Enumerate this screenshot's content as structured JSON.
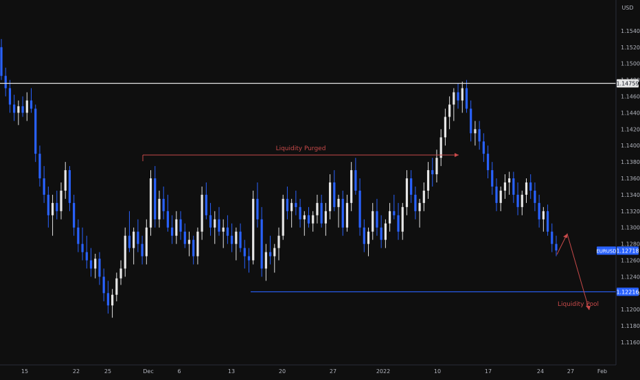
{
  "chart_data": {
    "type": "candlestick",
    "symbol": "EURUSD",
    "currency": "USD",
    "y_axis": {
      "min": 1.115,
      "max": 1.156,
      "ticks": [
        "1.15400",
        "1.15200",
        "1.15000",
        "1.14800",
        "1.14600",
        "1.14400",
        "1.14200",
        "1.14000",
        "1.13800",
        "1.13600",
        "1.13400",
        "1.13200",
        "1.13000",
        "1.12800",
        "1.12600",
        "1.12400",
        "1.12200",
        "1.12000",
        "1.11800",
        "1.11600"
      ]
    },
    "x_axis": {
      "ticks": [
        "15",
        "22",
        "25",
        "Dec",
        "6",
        "13",
        "20",
        "27",
        "2022",
        "10",
        "17",
        "24",
        "27",
        "Feb"
      ]
    },
    "grid": false,
    "last_price": {
      "label": "EURUSD",
      "value": "1.12718"
    },
    "levels": [
      {
        "value": "1.14759",
        "color": "#e6e6e6"
      },
      {
        "value": "1.12216",
        "color": "#2962ff"
      }
    ],
    "annotations": [
      {
        "text": "Liquidity Purged",
        "color": "#c94a4a"
      },
      {
        "text": "Liquidity Pool",
        "color": "#c94a4a"
      }
    ],
    "series": [
      {
        "pattern": [
          [
            1.152,
            1.153,
            1.148,
            1.1485
          ],
          [
            1.1485,
            1.1495,
            1.146,
            1.147
          ],
          [
            1.147,
            1.148,
            1.144,
            1.145
          ],
          [
            1.145,
            1.1462,
            1.143,
            1.144
          ],
          [
            1.144,
            1.1455,
            1.1425,
            1.1448
          ],
          [
            1.1448,
            1.146,
            1.1435,
            1.144
          ],
          [
            1.144,
            1.1465,
            1.143,
            1.1455
          ],
          [
            1.1455,
            1.147,
            1.144,
            1.1445
          ],
          [
            1.1445,
            1.145,
            1.138,
            1.139
          ],
          [
            1.139,
            1.14,
            1.135,
            1.136
          ],
          [
            1.136,
            1.1375,
            1.133,
            1.134
          ],
          [
            1.134,
            1.135,
            1.13,
            1.1315
          ],
          [
            1.1315,
            1.134,
            1.129,
            1.133
          ],
          [
            1.133,
            1.1345,
            1.131,
            1.132
          ],
          [
            1.132,
            1.1355,
            1.131,
            1.1345
          ],
          [
            1.1345,
            1.138,
            1.1335,
            1.137
          ],
          [
            1.137,
            1.1375,
            1.132,
            1.133
          ],
          [
            1.133,
            1.134,
            1.129,
            1.13
          ],
          [
            1.13,
            1.131,
            1.127,
            1.128
          ],
          [
            1.128,
            1.13,
            1.126,
            1.127
          ],
          [
            1.127,
            1.129,
            1.125,
            1.126
          ],
          [
            1.126,
            1.1275,
            1.124,
            1.125
          ],
          [
            1.125,
            1.1268,
            1.1238,
            1.1262
          ],
          [
            1.1262,
            1.127,
            1.123,
            1.124
          ],
          [
            1.124,
            1.125,
            1.121,
            1.122
          ],
          [
            1.122,
            1.1235,
            1.1195,
            1.1205
          ],
          [
            1.1205,
            1.1225,
            1.119,
            1.1218
          ],
          [
            1.1218,
            1.1245,
            1.121,
            1.1238
          ],
          [
            1.1238,
            1.126,
            1.123,
            1.125
          ],
          [
            1.125,
            1.13,
            1.124,
            1.129
          ],
          [
            1.129,
            1.132,
            1.127,
            1.1275
          ],
          [
            1.1275,
            1.13,
            1.1255,
            1.1295
          ],
          [
            1.1295,
            1.131,
            1.127,
            1.128
          ],
          [
            1.128,
            1.129,
            1.1255,
            1.1265
          ],
          [
            1.1265,
            1.131,
            1.1255,
            1.13
          ],
          [
            1.13,
            1.137,
            1.129,
            1.136
          ],
          [
            1.136,
            1.1375,
            1.13,
            1.131
          ],
          [
            1.131,
            1.1345,
            1.13,
            1.1335
          ],
          [
            1.1335,
            1.135,
            1.131,
            1.132
          ],
          [
            1.132,
            1.134,
            1.1295,
            1.13
          ],
          [
            1.13,
            1.1315,
            1.128,
            1.129
          ],
          [
            1.129,
            1.132,
            1.128,
            1.131
          ],
          [
            1.131,
            1.132,
            1.1285,
            1.1295
          ],
          [
            1.1295,
            1.1305,
            1.1275,
            1.128
          ],
          [
            1.128,
            1.1295,
            1.1265,
            1.1285
          ],
          [
            1.1285,
            1.129,
            1.1255,
            1.1265
          ],
          [
            1.1265,
            1.13,
            1.1255,
            1.1295
          ],
          [
            1.1295,
            1.135,
            1.1285,
            1.134
          ],
          [
            1.134,
            1.1355,
            1.131,
            1.1315
          ],
          [
            1.1315,
            1.133,
            1.129,
            1.13
          ],
          [
            1.13,
            1.132,
            1.128,
            1.131
          ],
          [
            1.131,
            1.1325,
            1.129,
            1.1295
          ],
          [
            1.1295,
            1.131,
            1.1275,
            1.13
          ],
          [
            1.13,
            1.1315,
            1.128,
            1.129
          ],
          [
            1.129,
            1.1305,
            1.127,
            1.128
          ],
          [
            1.128,
            1.13,
            1.126,
            1.1295
          ],
          [
            1.1295,
            1.1305,
            1.127,
            1.1275
          ],
          [
            1.1275,
            1.1285,
            1.125,
            1.1265
          ],
          [
            1.1265,
            1.1275,
            1.1245,
            1.126
          ],
          [
            1.126,
            1.1345,
            1.1255,
            1.1335
          ],
          [
            1.1335,
            1.1355,
            1.13,
            1.131
          ],
          [
            1.131,
            1.1325,
            1.124,
            1.125
          ],
          [
            1.125,
            1.128,
            1.1235,
            1.127
          ],
          [
            1.127,
            1.129,
            1.1255,
            1.1265
          ],
          [
            1.1265,
            1.128,
            1.1245,
            1.1275
          ],
          [
            1.1275,
            1.13,
            1.126,
            1.129
          ],
          [
            1.129,
            1.134,
            1.1285,
            1.1335
          ],
          [
            1.1335,
            1.135,
            1.131,
            1.132
          ],
          [
            1.132,
            1.1335,
            1.13,
            1.133
          ],
          [
            1.133,
            1.1345,
            1.1315,
            1.1325
          ],
          [
            1.1325,
            1.1335,
            1.13,
            1.131
          ],
          [
            1.131,
            1.132,
            1.129,
            1.1315
          ],
          [
            1.1315,
            1.1325,
            1.13,
            1.1305
          ],
          [
            1.1305,
            1.132,
            1.1295,
            1.1315
          ],
          [
            1.1315,
            1.134,
            1.1305,
            1.133
          ],
          [
            1.133,
            1.134,
            1.13,
            1.1305
          ],
          [
            1.1305,
            1.133,
            1.129,
            1.132
          ],
          [
            1.132,
            1.1365,
            1.131,
            1.1355
          ],
          [
            1.1355,
            1.137,
            1.132,
            1.1325
          ],
          [
            1.1325,
            1.134,
            1.13,
            1.1335
          ],
          [
            1.1335,
            1.1345,
            1.129,
            1.13
          ],
          [
            1.13,
            1.134,
            1.1295,
            1.133
          ],
          [
            1.133,
            1.138,
            1.132,
            1.137
          ],
          [
            1.137,
            1.1385,
            1.134,
            1.1345
          ],
          [
            1.1345,
            1.136,
            1.129,
            1.13
          ],
          [
            1.13,
            1.131,
            1.127,
            1.128
          ],
          [
            1.128,
            1.13,
            1.1265,
            1.1295
          ],
          [
            1.1295,
            1.133,
            1.1285,
            1.132
          ],
          [
            1.132,
            1.1335,
            1.129,
            1.13
          ],
          [
            1.13,
            1.1315,
            1.1275,
            1.1285
          ],
          [
            1.1285,
            1.131,
            1.1275,
            1.1305
          ],
          [
            1.1305,
            1.133,
            1.1295,
            1.132
          ],
          [
            1.132,
            1.134,
            1.131,
            1.1315
          ],
          [
            1.1315,
            1.133,
            1.1285,
            1.1295
          ],
          [
            1.1295,
            1.133,
            1.1285,
            1.1325
          ],
          [
            1.1325,
            1.137,
            1.1315,
            1.136
          ],
          [
            1.136,
            1.137,
            1.133,
            1.134
          ],
          [
            1.134,
            1.135,
            1.131,
            1.132
          ],
          [
            1.132,
            1.1335,
            1.13,
            1.133
          ],
          [
            1.133,
            1.1355,
            1.132,
            1.1345
          ],
          [
            1.1345,
            1.138,
            1.1335,
            1.137
          ],
          [
            1.137,
            1.1385,
            1.135,
            1.1365
          ],
          [
            1.1365,
            1.1395,
            1.1355,
            1.1385
          ],
          [
            1.1385,
            1.142,
            1.1375,
            1.141
          ],
          [
            1.141,
            1.1445,
            1.14,
            1.1435
          ],
          [
            1.1435,
            1.146,
            1.142,
            1.145
          ],
          [
            1.145,
            1.147,
            1.143,
            1.1465
          ],
          [
            1.1465,
            1.1476,
            1.1445,
            1.1455
          ],
          [
            1.1455,
            1.1478,
            1.144,
            1.147
          ],
          [
            1.147,
            1.148,
            1.144,
            1.1445
          ],
          [
            1.1445,
            1.1455,
            1.1405,
            1.1415
          ],
          [
            1.1415,
            1.143,
            1.14,
            1.142
          ],
          [
            1.142,
            1.143,
            1.1395,
            1.1405
          ],
          [
            1.1405,
            1.1415,
            1.138,
            1.139
          ],
          [
            1.139,
            1.14,
            1.136,
            1.137
          ],
          [
            1.137,
            1.138,
            1.134,
            1.135
          ],
          [
            1.135,
            1.136,
            1.132,
            1.133
          ],
          [
            1.133,
            1.135,
            1.132,
            1.1345
          ],
          [
            1.1345,
            1.1365,
            1.1335,
            1.1355
          ],
          [
            1.1355,
            1.1368,
            1.134,
            1.136
          ],
          [
            1.136,
            1.1368,
            1.133,
            1.134
          ],
          [
            1.134,
            1.1355,
            1.1315,
            1.1325
          ],
          [
            1.1325,
            1.1345,
            1.1315,
            1.134
          ],
          [
            1.134,
            1.136,
            1.133,
            1.1355
          ],
          [
            1.1355,
            1.1365,
            1.1335,
            1.1345
          ],
          [
            1.1345,
            1.1355,
            1.132,
            1.133
          ],
          [
            1.133,
            1.134,
            1.13,
            1.131
          ],
          [
            1.131,
            1.1325,
            1.1295,
            1.132
          ],
          [
            1.132,
            1.1328,
            1.129,
            1.1295
          ],
          [
            1.1295,
            1.1305,
            1.127,
            1.128
          ],
          [
            1.128,
            1.129,
            1.1265,
            1.1272
          ]
        ]
      }
    ]
  }
}
